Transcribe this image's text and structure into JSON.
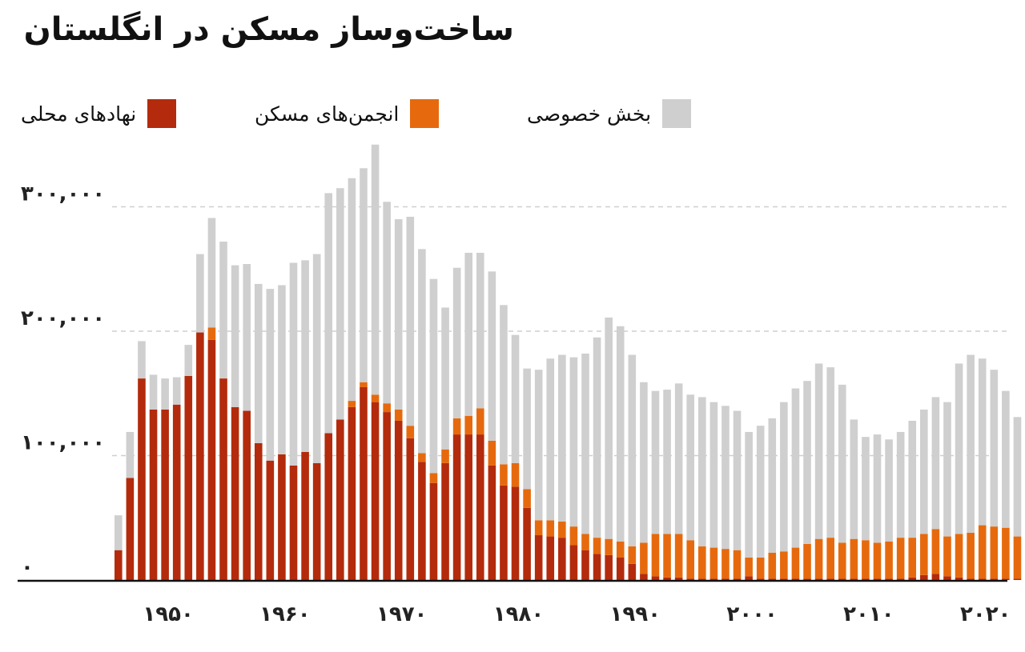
{
  "title": "ساخت‌وساز مسکن در انگلستان",
  "colors": {
    "local_authorities": "#b32b0c",
    "housing_associations": "#e66a0d",
    "private_sector": "#cfcfcf"
  },
  "legend": [
    {
      "label": "نهادهای محلی",
      "color": "#b32b0c"
    },
    {
      "label": "انجمن‌های مسکن",
      "color": "#e66a0d"
    },
    {
      "label": "بخش خصوصی",
      "color": "#cfcfcf"
    }
  ],
  "chart_data": {
    "type": "bar",
    "stacked": true,
    "title": "ساخت‌وساز مسکن در انگلستان",
    "xlabel": "",
    "ylabel": "",
    "ylim": [
      0,
      330000
    ],
    "y_ticks": [
      0,
      100000,
      200000,
      300000
    ],
    "y_tick_labels": [
      "۰",
      "۱۰۰,۰۰۰",
      "۲۰۰,۰۰۰",
      "۳۰۰,۰۰۰"
    ],
    "x_ticks": [
      1950,
      1960,
      1970,
      1980,
      1990,
      2000,
      2010,
      2020
    ],
    "x_tick_labels": [
      "۱۹۵۰",
      "۱۹۶۰",
      "۱۹۷۰",
      "۱۹۸۰",
      "۱۹۹۰",
      "۲۰۰۰",
      "۲۰۱۰",
      "۲۰۲۰"
    ],
    "grid": "horizontal-dashed",
    "legend_position": "top",
    "categories": [
      1946,
      1947,
      1948,
      1949,
      1950,
      1951,
      1952,
      1953,
      1954,
      1955,
      1956,
      1957,
      1958,
      1959,
      1960,
      1961,
      1962,
      1963,
      1964,
      1965,
      1966,
      1967,
      1968,
      1969,
      1970,
      1971,
      1972,
      1973,
      1974,
      1975,
      1976,
      1977,
      1978,
      1979,
      1980,
      1981,
      1982,
      1983,
      1984,
      1985,
      1986,
      1987,
      1988,
      1989,
      1990,
      1991,
      1992,
      1993,
      1994,
      1995,
      1996,
      1997,
      1998,
      1999,
      2000,
      2001,
      2002,
      2003,
      2004,
      2005,
      2006,
      2007,
      2008,
      2009,
      2010,
      2011,
      2012,
      2013,
      2014,
      2015,
      2016,
      2017,
      2018,
      2019,
      2020,
      2021,
      2022,
      2023
    ],
    "series": [
      {
        "name": "نهادهای محلی",
        "values": [
          24000,
          82000,
          162000,
          137000,
          137000,
          141000,
          164000,
          199000,
          193000,
          162000,
          139000,
          136000,
          110000,
          96000,
          101000,
          92000,
          103000,
          94000,
          118000,
          129000,
          139000,
          155000,
          143000,
          135000,
          128000,
          114000,
          95000,
          78000,
          94000,
          117000,
          117000,
          117000,
          92000,
          76000,
          75000,
          58000,
          36000,
          35000,
          34000,
          28000,
          24000,
          21000,
          20000,
          18000,
          13000,
          5000,
          3000,
          2000,
          2000,
          1000,
          1000,
          1000,
          1000,
          1000,
          3000,
          1000,
          1000,
          1000,
          1000,
          1000,
          1000,
          1000,
          1000,
          1000,
          1000,
          1000,
          1000,
          1000,
          2000,
          4000,
          5000,
          3000,
          2000,
          1000,
          1000,
          1000,
          1000,
          1000
        ]
      },
      {
        "name": "انجمن‌های مسکن",
        "values": [
          0,
          0,
          0,
          0,
          0,
          0,
          0,
          0,
          10000,
          0,
          0,
          0,
          0,
          0,
          0,
          0,
          0,
          0,
          0,
          0,
          5000,
          4000,
          6000,
          7000,
          9000,
          10000,
          7000,
          8000,
          11000,
          13000,
          15000,
          21000,
          20000,
          17000,
          19000,
          15000,
          12000,
          13000,
          13000,
          15000,
          13000,
          13000,
          13000,
          13000,
          14000,
          25000,
          34000,
          35000,
          35000,
          31000,
          26000,
          25000,
          24000,
          23000,
          15000,
          17000,
          21000,
          22000,
          25000,
          28000,
          32000,
          33000,
          29000,
          32000,
          31000,
          29000,
          30000,
          33000,
          32000,
          33000,
          36000,
          32000,
          35000,
          37000,
          43000,
          42000,
          41000,
          34000
        ]
      },
      {
        "name": "بخش خصوصی",
        "values": [
          28000,
          37000,
          30000,
          28000,
          25000,
          22000,
          25000,
          63000,
          88000,
          110000,
          114000,
          118000,
          128000,
          138000,
          136000,
          163000,
          154000,
          168000,
          193000,
          186000,
          179000,
          172000,
          201000,
          162000,
          153000,
          168000,
          164000,
          156000,
          114000,
          121000,
          131000,
          125000,
          136000,
          128000,
          103000,
          97000,
          121000,
          130000,
          134000,
          136000,
          145000,
          161000,
          178000,
          173000,
          154000,
          129000,
          115000,
          116000,
          121000,
          117000,
          120000,
          117000,
          115000,
          112000,
          101000,
          106000,
          108000,
          120000,
          128000,
          131000,
          141000,
          137000,
          127000,
          96000,
          83000,
          87000,
          82000,
          85000,
          94000,
          100000,
          106000,
          108000,
          137000,
          143000,
          134000,
          126000,
          110000,
          96000
        ]
      }
    ]
  }
}
